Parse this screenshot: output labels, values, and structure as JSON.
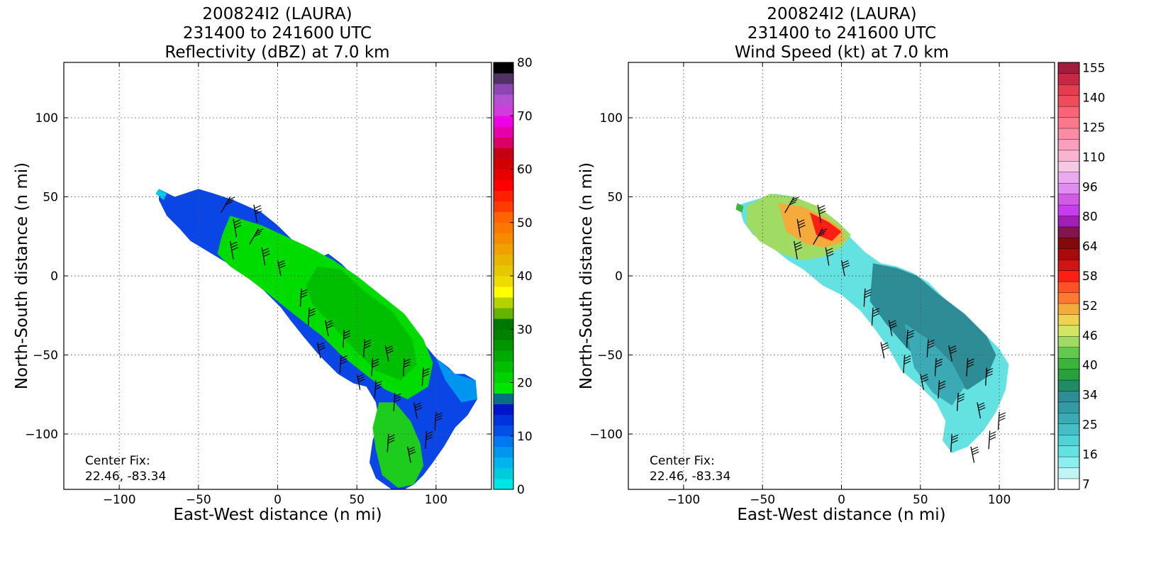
{
  "chart_data": [
    {
      "type": "heatmap",
      "title_lines": [
        "200824I2 (LAURA)",
        "231400 to 241600 UTC",
        "Reflectivity (dBZ) at 7.0 km"
      ],
      "xlabel": "East-West distance (n mi)",
      "ylabel": "North-South distance (n mi)",
      "xlim": [
        -135,
        135
      ],
      "ylim": [
        -135,
        135
      ],
      "xticks": [
        -100,
        -50,
        0,
        50,
        100
      ],
      "yticks": [
        -100,
        -50,
        0,
        50,
        100
      ],
      "grid": true,
      "annotation": [
        "Center Fix:",
        "22.46, -83.34"
      ],
      "colorbar": {
        "range": [
          0,
          80
        ],
        "tick_values": [
          0,
          10,
          20,
          30,
          40,
          50,
          60,
          70,
          80
        ],
        "colors": [
          "#00e5e5",
          "#00ccdd",
          "#00b4ee",
          "#0096f0",
          "#0078f0",
          "#0050e6",
          "#0032dc",
          "#0014c8",
          "#0a6e82",
          "#00e600",
          "#00d200",
          "#00be00",
          "#00aa00",
          "#009600",
          "#008200",
          "#007800",
          "#64b400",
          "#b4d200",
          "#ffff00",
          "#eedc00",
          "#e6c800",
          "#ebb400",
          "#f0a000",
          "#f58c00",
          "#fa7800",
          "#ff6400",
          "#ff3c00",
          "#ff1e00",
          "#ff0000",
          "#e60000",
          "#d20000",
          "#c30014",
          "#dc0064",
          "#e600aa",
          "#f000e6",
          "#d23cdc",
          "#b450d2",
          "#8c46b4",
          "#503264",
          "#000000"
        ]
      },
      "echo_core_values_dBZ": [
        12,
        16,
        20,
        24,
        28
      ]
    },
    {
      "type": "heatmap",
      "title_lines": [
        "200824I2 (LAURA)",
        "231400 to 241600 UTC",
        "Wind Speed (kt) at 7.0 km"
      ],
      "xlabel": "East-West distance (n mi)",
      "ylabel": "North-South distance (n mi)",
      "xlim": [
        -135,
        135
      ],
      "ylim": [
        -135,
        135
      ],
      "xticks": [
        -100,
        -50,
        0,
        50,
        100
      ],
      "yticks": [
        -100,
        -50,
        0,
        50,
        100
      ],
      "grid": true,
      "annotation": [
        "Center Fix:",
        "22.46, -83.34"
      ],
      "colorbar": {
        "tick_labels": [
          "7",
          "16",
          "25",
          "34",
          "40",
          "46",
          "52",
          "58",
          "64",
          "80",
          "96",
          "110",
          "125",
          "140",
          "155"
        ],
        "colors": [
          "#ffffff",
          "#bff5f5",
          "#8ceeee",
          "#64e1e1",
          "#50d2d7",
          "#46bec8",
          "#3caab4",
          "#329aa5",
          "#2d8c96",
          "#1e8c64",
          "#28a03c",
          "#3cb43c",
          "#64c850",
          "#a0dc64",
          "#d2e664",
          "#f0d250",
          "#f5aa3c",
          "#ff7832",
          "#ff5028",
          "#ff1e14",
          "#d21414",
          "#aa0a0a",
          "#820a0a",
          "#821450",
          "#a01eb4",
          "#c83cf0",
          "#d25ae6",
          "#e18cf0",
          "#ebaaf0",
          "#f5c8e6",
          "#fab4d2",
          "#faa0be",
          "#fa8ca5",
          "#fa788c",
          "#fa6478",
          "#f04b5a",
          "#e63c50",
          "#c82846",
          "#a01e3c"
        ]
      },
      "wind_core_values_kt": [
        20,
        22,
        40,
        52,
        58
      ]
    }
  ]
}
